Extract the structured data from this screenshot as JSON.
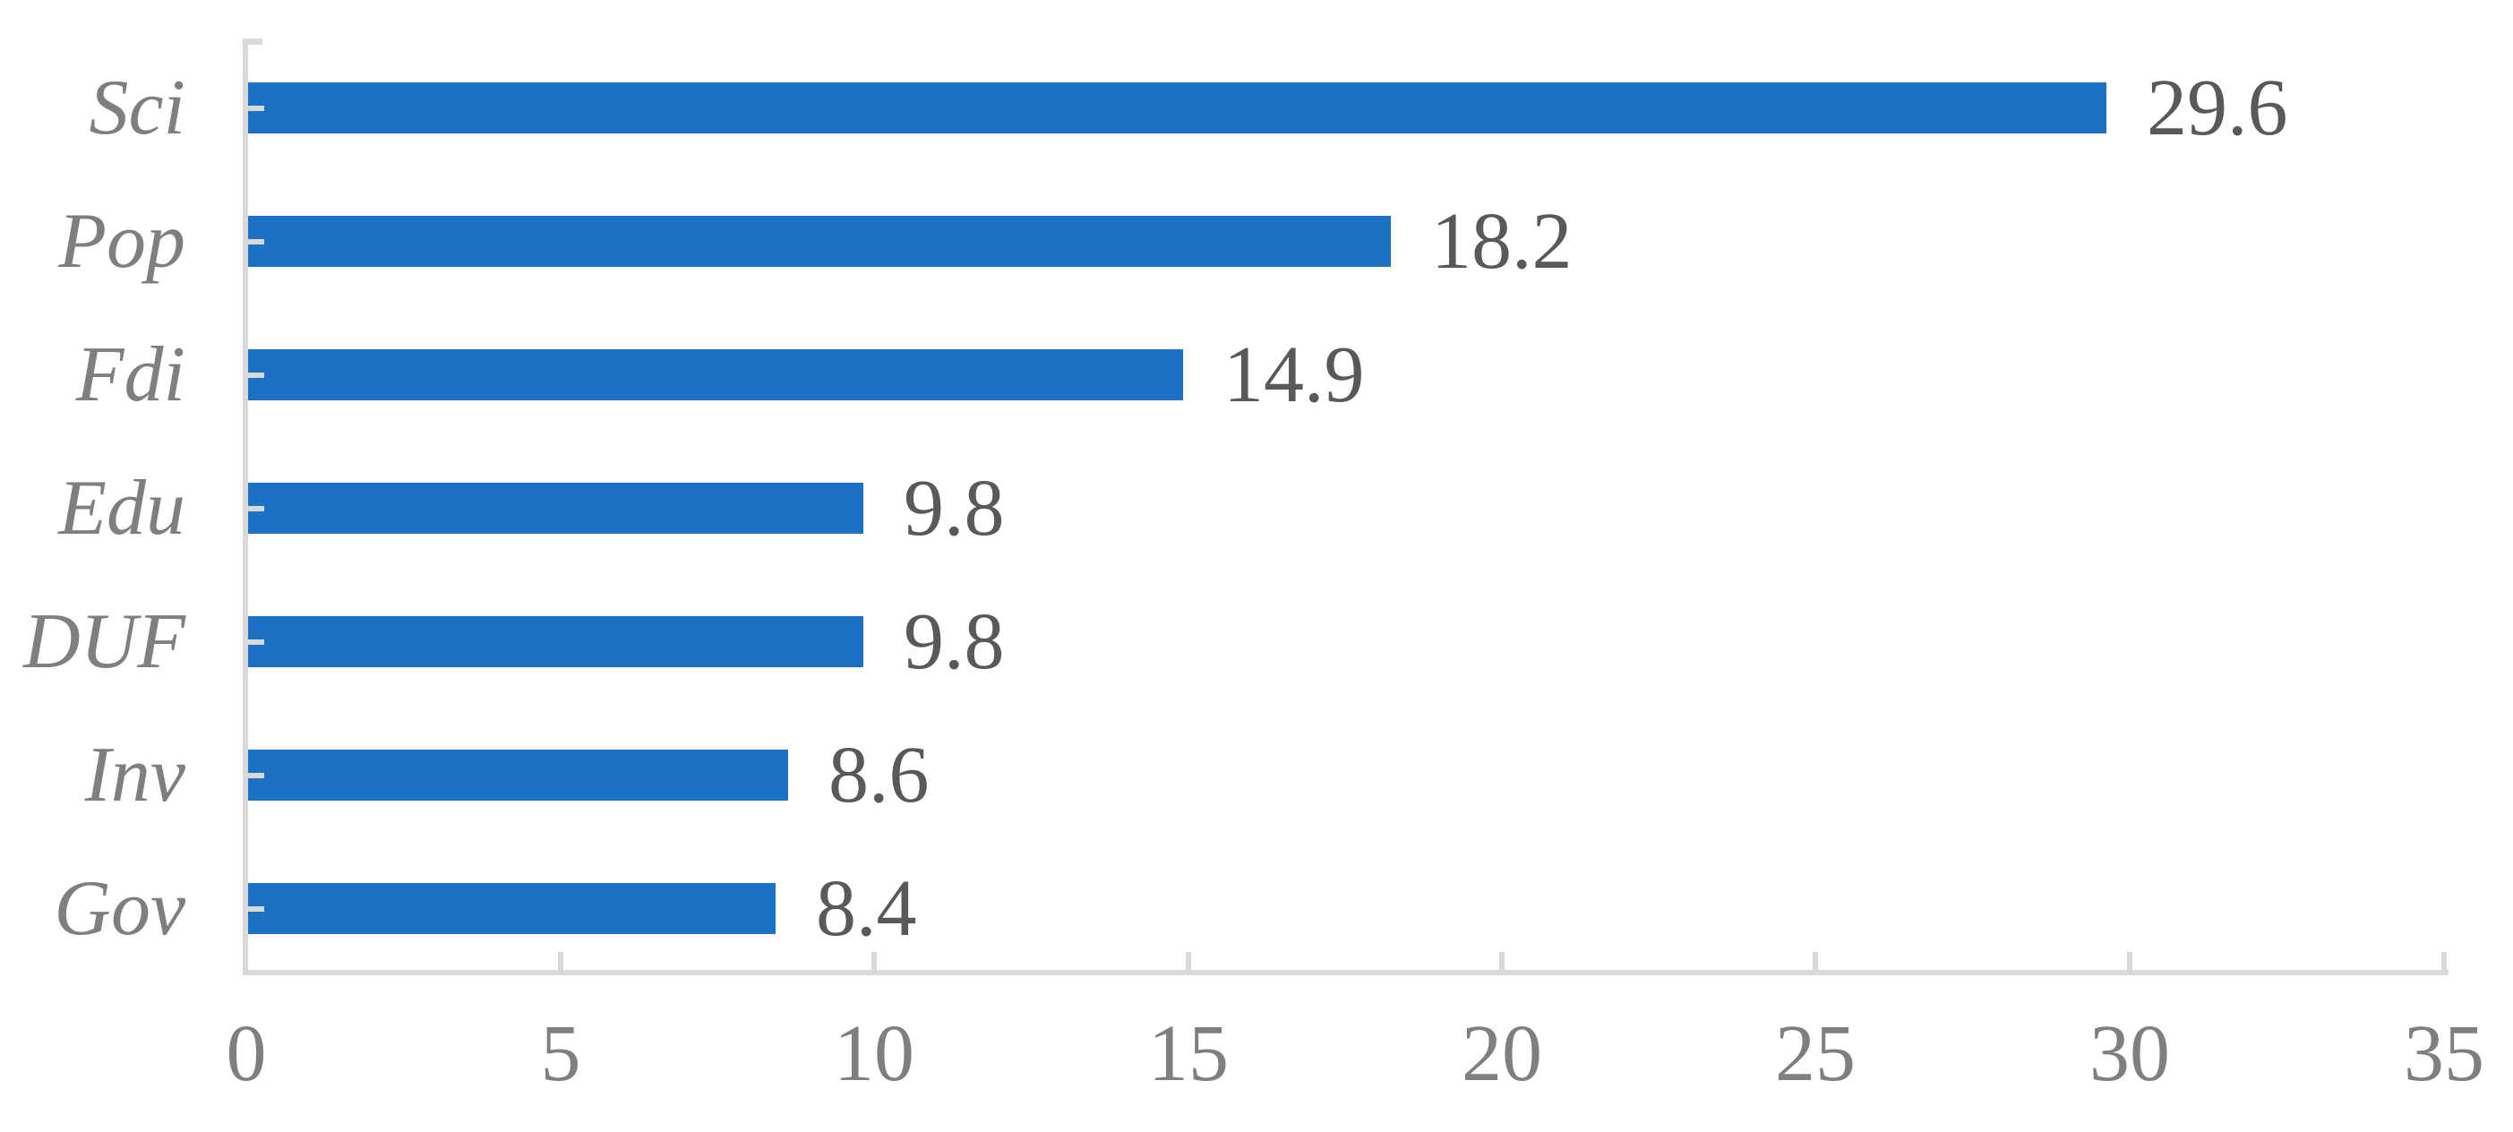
{
  "chart_data": {
    "type": "bar",
    "orientation": "horizontal",
    "title": "",
    "xlabel": "",
    "ylabel": "",
    "categories": [
      "Sci",
      "Pop",
      "Fdi",
      "Edu",
      "DUF",
      "Inv",
      "Gov"
    ],
    "values": [
      29.6,
      18.2,
      14.9,
      9.8,
      9.8,
      8.6,
      8.4
    ],
    "data_labels": [
      "29.6",
      "18.2",
      "14.9",
      "9.8",
      "9.8",
      "8.6",
      "8.4"
    ],
    "x_ticks": [
      0,
      5,
      10,
      15,
      20,
      25,
      30,
      35
    ],
    "xlim": [
      0,
      35
    ],
    "grid": false,
    "legend_position": "none",
    "data_labels_shown": true,
    "colors": {
      "bar": "#1b72c4",
      "axis": "#d9d9d9",
      "category_labels": "#7f7f7f",
      "tick_labels": "#7f7f7f",
      "value_labels": "#595959"
    }
  }
}
